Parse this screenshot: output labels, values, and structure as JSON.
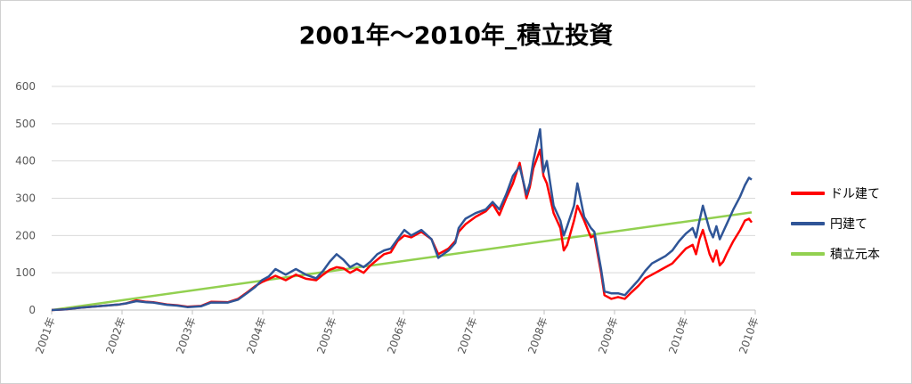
{
  "chart_data": {
    "type": "line",
    "title": "2001年～2010年_積立投資",
    "xlabel": "",
    "ylabel": "",
    "ylim": [
      0,
      600
    ],
    "yticks": [
      0,
      100,
      200,
      300,
      400,
      500,
      600
    ],
    "xlim": [
      2001,
      2010.95
    ],
    "x_tick_labels": [
      "2001年",
      "2002年",
      "2003年",
      "2004年",
      "2005年",
      "2006年",
      "2007年",
      "2008年",
      "2009年",
      "2010年",
      "2010年"
    ],
    "x_tick_positions": [
      2001,
      2002,
      2003,
      2004,
      2005,
      2006,
      2007,
      2008,
      2009,
      2010,
      2010.95
    ],
    "grid": true,
    "legend_position": "right",
    "series": [
      {
        "name": "ドル建て",
        "color": "#FF0000",
        "points": [
          [
            2001.0,
            0
          ],
          [
            2001.2,
            2
          ],
          [
            2001.4,
            6
          ],
          [
            2001.6,
            9
          ],
          [
            2001.8,
            12
          ],
          [
            2002.0,
            15
          ],
          [
            2002.1,
            18
          ],
          [
            2002.25,
            26
          ],
          [
            2002.4,
            22
          ],
          [
            2002.5,
            21
          ],
          [
            2002.7,
            15
          ],
          [
            2002.85,
            13
          ],
          [
            2003.0,
            9
          ],
          [
            2003.2,
            11
          ],
          [
            2003.35,
            22
          ],
          [
            2003.6,
            21
          ],
          [
            2003.75,
            30
          ],
          [
            2003.9,
            50
          ],
          [
            2004.0,
            64
          ],
          [
            2004.1,
            75
          ],
          [
            2004.2,
            83
          ],
          [
            2004.3,
            92
          ],
          [
            2004.45,
            80
          ],
          [
            2004.6,
            95
          ],
          [
            2004.75,
            84
          ],
          [
            2004.9,
            80
          ],
          [
            2005.0,
            95
          ],
          [
            2005.1,
            108
          ],
          [
            2005.2,
            115
          ],
          [
            2005.3,
            112
          ],
          [
            2005.4,
            100
          ],
          [
            2005.5,
            110
          ],
          [
            2005.6,
            100
          ],
          [
            2005.7,
            120
          ],
          [
            2005.8,
            135
          ],
          [
            2005.9,
            150
          ],
          [
            2006.0,
            155
          ],
          [
            2006.1,
            185
          ],
          [
            2006.2,
            200
          ],
          [
            2006.3,
            195
          ],
          [
            2006.45,
            210
          ],
          [
            2006.6,
            190
          ],
          [
            2006.7,
            150
          ],
          [
            2006.85,
            165
          ],
          [
            2006.95,
            185
          ],
          [
            2007.0,
            210
          ],
          [
            2007.1,
            230
          ],
          [
            2007.25,
            250
          ],
          [
            2007.4,
            265
          ],
          [
            2007.5,
            285
          ],
          [
            2007.6,
            255
          ],
          [
            2007.7,
            300
          ],
          [
            2007.8,
            340
          ],
          [
            2007.9,
            395
          ],
          [
            2008.0,
            300
          ],
          [
            2008.05,
            330
          ],
          [
            2008.1,
            380
          ],
          [
            2008.2,
            430
          ],
          [
            2008.25,
            360
          ],
          [
            2008.3,
            340
          ],
          [
            2008.4,
            260
          ],
          [
            2008.5,
            220
          ],
          [
            2008.55,
            160
          ],
          [
            2008.6,
            175
          ],
          [
            2008.7,
            240
          ],
          [
            2008.75,
            280
          ],
          [
            2008.85,
            240
          ],
          [
            2008.95,
            195
          ],
          [
            2009.0,
            200
          ],
          [
            2009.1,
            100
          ],
          [
            2009.15,
            40
          ],
          [
            2009.25,
            30
          ],
          [
            2009.35,
            35
          ],
          [
            2009.45,
            30
          ],
          [
            2009.55,
            48
          ],
          [
            2009.65,
            65
          ],
          [
            2009.75,
            85
          ],
          [
            2009.85,
            95
          ],
          [
            2009.95,
            105
          ],
          [
            2010.05,
            115
          ],
          [
            2010.15,
            125
          ],
          [
            2010.25,
            145
          ],
          [
            2010.35,
            165
          ],
          [
            2010.45,
            175
          ],
          [
            2010.5,
            150
          ],
          [
            2010.55,
            190
          ],
          [
            2010.6,
            215
          ],
          [
            2010.7,
            150
          ],
          [
            2010.75,
            130
          ],
          [
            2010.8,
            160
          ],
          [
            2010.85,
            120
          ],
          [
            2010.9,
            130
          ],
          [
            2010.95,
            150
          ],
          [
            2011.05,
            185
          ],
          [
            2011.15,
            215
          ],
          [
            2011.22,
            240
          ],
          [
            2011.28,
            245
          ],
          [
            2011.32,
            235
          ]
        ]
      },
      {
        "name": "円建て",
        "color": "#2F5597",
        "points": [
          [
            2001.0,
            0
          ],
          [
            2001.2,
            2
          ],
          [
            2001.4,
            6
          ],
          [
            2001.6,
            9
          ],
          [
            2001.8,
            12
          ],
          [
            2002.0,
            15
          ],
          [
            2002.1,
            18
          ],
          [
            2002.25,
            24
          ],
          [
            2002.4,
            21
          ],
          [
            2002.5,
            20
          ],
          [
            2002.7,
            14
          ],
          [
            2002.85,
            12
          ],
          [
            2003.0,
            8
          ],
          [
            2003.2,
            10
          ],
          [
            2003.35,
            20
          ],
          [
            2003.6,
            20
          ],
          [
            2003.75,
            28
          ],
          [
            2003.9,
            48
          ],
          [
            2004.0,
            62
          ],
          [
            2004.1,
            80
          ],
          [
            2004.2,
            90
          ],
          [
            2004.3,
            110
          ],
          [
            2004.45,
            95
          ],
          [
            2004.6,
            110
          ],
          [
            2004.75,
            95
          ],
          [
            2004.9,
            85
          ],
          [
            2005.0,
            105
          ],
          [
            2005.1,
            130
          ],
          [
            2005.2,
            150
          ],
          [
            2005.3,
            135
          ],
          [
            2005.4,
            115
          ],
          [
            2005.5,
            125
          ],
          [
            2005.6,
            115
          ],
          [
            2005.7,
            130
          ],
          [
            2005.8,
            150
          ],
          [
            2005.9,
            160
          ],
          [
            2006.0,
            165
          ],
          [
            2006.1,
            190
          ],
          [
            2006.2,
            215
          ],
          [
            2006.3,
            200
          ],
          [
            2006.45,
            215
          ],
          [
            2006.6,
            190
          ],
          [
            2006.7,
            140
          ],
          [
            2006.85,
            160
          ],
          [
            2006.95,
            180
          ],
          [
            2007.0,
            220
          ],
          [
            2007.1,
            245
          ],
          [
            2007.25,
            260
          ],
          [
            2007.4,
            270
          ],
          [
            2007.5,
            290
          ],
          [
            2007.6,
            270
          ],
          [
            2007.7,
            310
          ],
          [
            2007.8,
            360
          ],
          [
            2007.9,
            385
          ],
          [
            2008.0,
            310
          ],
          [
            2008.05,
            340
          ],
          [
            2008.1,
            400
          ],
          [
            2008.2,
            485
          ],
          [
            2008.25,
            370
          ],
          [
            2008.3,
            400
          ],
          [
            2008.4,
            280
          ],
          [
            2008.5,
            240
          ],
          [
            2008.55,
            200
          ],
          [
            2008.6,
            225
          ],
          [
            2008.7,
            280
          ],
          [
            2008.75,
            340
          ],
          [
            2008.85,
            250
          ],
          [
            2008.95,
            220
          ],
          [
            2009.0,
            210
          ],
          [
            2009.1,
            110
          ],
          [
            2009.15,
            50
          ],
          [
            2009.25,
            45
          ],
          [
            2009.35,
            45
          ],
          [
            2009.45,
            40
          ],
          [
            2009.55,
            60
          ],
          [
            2009.65,
            80
          ],
          [
            2009.75,
            105
          ],
          [
            2009.85,
            125
          ],
          [
            2009.95,
            135
          ],
          [
            2010.05,
            145
          ],
          [
            2010.15,
            160
          ],
          [
            2010.25,
            185
          ],
          [
            2010.35,
            205
          ],
          [
            2010.45,
            220
          ],
          [
            2010.5,
            195
          ],
          [
            2010.55,
            240
          ],
          [
            2010.6,
            280
          ],
          [
            2010.7,
            215
          ],
          [
            2010.75,
            195
          ],
          [
            2010.8,
            225
          ],
          [
            2010.85,
            190
          ],
          [
            2010.9,
            210
          ],
          [
            2010.95,
            230
          ],
          [
            2011.05,
            270
          ],
          [
            2011.15,
            305
          ],
          [
            2011.22,
            335
          ],
          [
            2011.28,
            355
          ],
          [
            2011.32,
            350
          ]
        ]
      },
      {
        "name": "積立元本",
        "color": "#92D050",
        "points": [
          [
            2001.0,
            0
          ],
          [
            2011.32,
            262
          ]
        ]
      }
    ]
  }
}
